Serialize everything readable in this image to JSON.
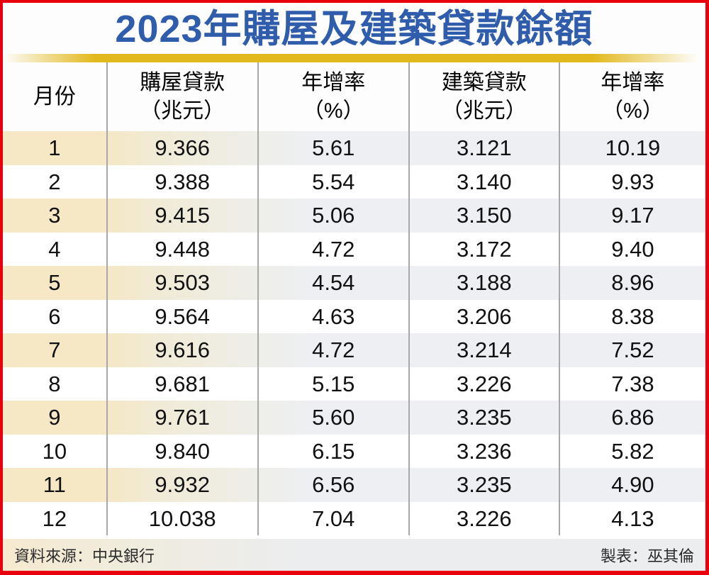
{
  "title": "2023年購屋及建築貸款餘額",
  "table": {
    "headers": [
      {
        "line1": "月份",
        "line2": ""
      },
      {
        "line1": "購屋貸款",
        "line2": "（兆元）"
      },
      {
        "line1": "年增率",
        "line2": "（%）"
      },
      {
        "line1": "建築貸款",
        "line2": "（兆元）"
      },
      {
        "line1": "年增率",
        "line2": "（%）"
      }
    ],
    "rows": [
      [
        "1",
        "9.366",
        "5.61",
        "3.121",
        "10.19"
      ],
      [
        "2",
        "9.388",
        "5.54",
        "3.140",
        "9.93"
      ],
      [
        "3",
        "9.415",
        "5.06",
        "3.150",
        "9.17"
      ],
      [
        "4",
        "9.448",
        "4.72",
        "3.172",
        "9.40"
      ],
      [
        "5",
        "9.503",
        "4.54",
        "3.188",
        "8.96"
      ],
      [
        "6",
        "9.564",
        "4.63",
        "3.206",
        "8.38"
      ],
      [
        "7",
        "9.616",
        "4.72",
        "3.214",
        "7.52"
      ],
      [
        "8",
        "9.681",
        "5.15",
        "3.226",
        "7.38"
      ],
      [
        "9",
        "9.761",
        "5.60",
        "3.235",
        "6.86"
      ],
      [
        "10",
        "9.840",
        "6.15",
        "3.236",
        "5.82"
      ],
      [
        "11",
        "9.932",
        "6.56",
        "3.235",
        "4.90"
      ],
      [
        "12",
        "10.038",
        "7.04",
        "3.226",
        "4.13"
      ]
    ]
  },
  "footer": {
    "source": "資料來源：中央銀行",
    "credit": "製表：巫其倫"
  },
  "colors": {
    "border_red": "#e8000f",
    "title_blue": "#2f5dab",
    "gold_bar": "#e2b91d",
    "tint_cream": "#f6e7c5",
    "tint_gray": "#edeff2",
    "divider_gray": "#a8a8a8"
  },
  "chart_data": {
    "type": "table",
    "title": "2023年購屋及建築貸款餘額",
    "columns": [
      "月份",
      "購屋貸款（兆元）",
      "年增率（%）",
      "建築貸款（兆元）",
      "年增率（%）"
    ],
    "months": [
      1,
      2,
      3,
      4,
      5,
      6,
      7,
      8,
      9,
      10,
      11,
      12
    ],
    "series": [
      {
        "name": "購屋貸款（兆元）",
        "values": [
          9.366,
          9.388,
          9.415,
          9.448,
          9.503,
          9.564,
          9.616,
          9.681,
          9.761,
          9.84,
          9.932,
          10.038
        ]
      },
      {
        "name": "購屋貸款年增率（%）",
        "values": [
          5.61,
          5.54,
          5.06,
          4.72,
          4.54,
          4.63,
          4.72,
          5.15,
          5.6,
          6.15,
          6.56,
          7.04
        ]
      },
      {
        "name": "建築貸款（兆元）",
        "values": [
          3.121,
          3.14,
          3.15,
          3.172,
          3.188,
          3.206,
          3.214,
          3.226,
          3.235,
          3.236,
          3.235,
          3.226
        ]
      },
      {
        "name": "建築貸款年增率（%）",
        "values": [
          10.19,
          9.93,
          9.17,
          9.4,
          8.96,
          8.38,
          7.52,
          7.38,
          6.86,
          5.82,
          4.9,
          4.13
        ]
      }
    ],
    "source": "資料來源：中央銀行",
    "credit": "製表：巫其倫"
  }
}
